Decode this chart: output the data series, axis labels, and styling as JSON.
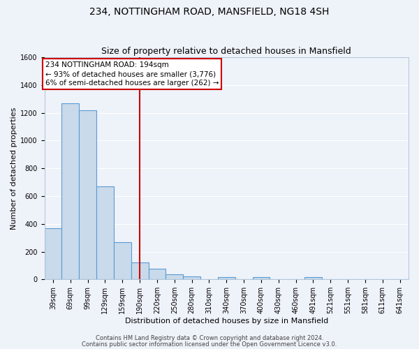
{
  "title": "234, NOTTINGHAM ROAD, MANSFIELD, NG18 4SH",
  "subtitle": "Size of property relative to detached houses in Mansfield",
  "xlabel": "Distribution of detached houses by size in Mansfield",
  "ylabel": "Number of detached properties",
  "bin_labels": [
    "39sqm",
    "69sqm",
    "99sqm",
    "129sqm",
    "159sqm",
    "190sqm",
    "220sqm",
    "250sqm",
    "280sqm",
    "310sqm",
    "340sqm",
    "370sqm",
    "400sqm",
    "430sqm",
    "460sqm",
    "491sqm",
    "521sqm",
    "551sqm",
    "581sqm",
    "611sqm",
    "641sqm"
  ],
  "bar_values": [
    370,
    1270,
    1220,
    670,
    270,
    120,
    75,
    35,
    20,
    0,
    15,
    0,
    15,
    0,
    0,
    15,
    0,
    0,
    0,
    0,
    0
  ],
  "bar_color": "#c9daea",
  "bar_edge_color": "#5b9bd5",
  "vline_x": 5,
  "vline_color": "#cc0000",
  "annotation_line1": "234 NOTTINGHAM ROAD: 194sqm",
  "annotation_line2": "← 93% of detached houses are smaller (3,776)",
  "annotation_line3": "6% of semi-detached houses are larger (262) →",
  "annotation_box_color": "#ffffff",
  "annotation_box_edge_color": "#cc0000",
  "ylim": [
    0,
    1600
  ],
  "yticks": [
    0,
    200,
    400,
    600,
    800,
    1000,
    1200,
    1400,
    1600
  ],
  "footer_line1": "Contains HM Land Registry data © Crown copyright and database right 2024.",
  "footer_line2": "Contains public sector information licensed under the Open Government Licence v3.0.",
  "background_color": "#eef2f9",
  "grid_color": "#ffffff",
  "title_fontsize": 10,
  "subtitle_fontsize": 9,
  "axis_label_fontsize": 8,
  "tick_fontsize": 7,
  "annotation_fontsize": 7.5,
  "footer_fontsize": 6
}
